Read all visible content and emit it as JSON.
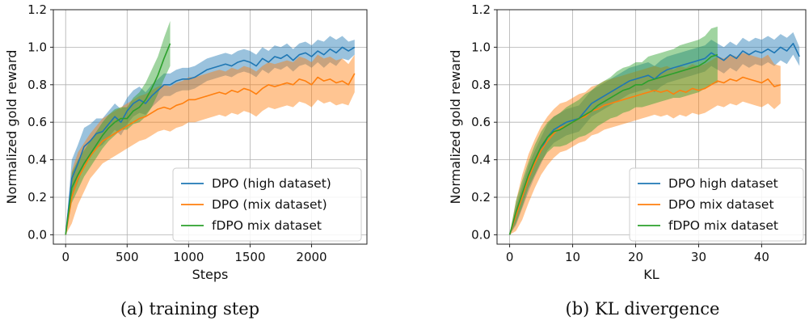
{
  "figure": {
    "captions": [
      "(a) training step",
      "(b) KL divergence"
    ]
  },
  "colors": {
    "blue": "#1f77b4",
    "orange": "#ff7f0e",
    "green": "#2ca02c",
    "grid": "#b0b0b0"
  },
  "chart_data": [
    {
      "type": "line",
      "title": "",
      "xlabel": "Steps",
      "ylabel": "Normalized gold reward",
      "xlim": [
        -100,
        2450
      ],
      "ylim": [
        -0.05,
        1.2
      ],
      "xticks": [
        0,
        500,
        1000,
        1500,
        2000
      ],
      "yticks": [
        0.0,
        0.2,
        0.4,
        0.6,
        0.8,
        1.0,
        1.2
      ],
      "ytick_labels": [
        "0.0",
        "0.2",
        "0.4",
        "0.6",
        "0.8",
        "1.0",
        "1.2"
      ],
      "grid": true,
      "legend_position": "lower-right",
      "series": [
        {
          "name": "DPO (high dataset)",
          "color": "#1f77b4",
          "x": [
            0,
            50,
            100,
            150,
            200,
            250,
            300,
            350,
            400,
            450,
            500,
            550,
            600,
            650,
            700,
            750,
            800,
            850,
            900,
            950,
            1000,
            1050,
            1100,
            1150,
            1200,
            1250,
            1300,
            1350,
            1400,
            1450,
            1500,
            1550,
            1600,
            1650,
            1700,
            1750,
            1800,
            1850,
            1900,
            1950,
            2000,
            2050,
            2100,
            2150,
            2200,
            2250,
            2300,
            2350
          ],
          "y": [
            0.0,
            0.3,
            0.38,
            0.47,
            0.5,
            0.54,
            0.55,
            0.59,
            0.63,
            0.6,
            0.66,
            0.7,
            0.72,
            0.7,
            0.74,
            0.77,
            0.8,
            0.8,
            0.82,
            0.83,
            0.83,
            0.84,
            0.86,
            0.88,
            0.89,
            0.9,
            0.91,
            0.9,
            0.92,
            0.93,
            0.92,
            0.9,
            0.94,
            0.92,
            0.95,
            0.94,
            0.96,
            0.93,
            0.96,
            0.97,
            0.95,
            0.98,
            0.96,
            0.99,
            0.97,
            1.0,
            0.98,
            1.0
          ],
          "band": [
            0.0,
            0.1,
            0.1,
            0.1,
            0.09,
            0.08,
            0.07,
            0.07,
            0.07,
            0.07,
            0.07,
            0.07,
            0.07,
            0.06,
            0.06,
            0.06,
            0.06,
            0.06,
            0.06,
            0.06,
            0.06,
            0.06,
            0.06,
            0.06,
            0.06,
            0.06,
            0.06,
            0.06,
            0.06,
            0.06,
            0.06,
            0.06,
            0.06,
            0.06,
            0.06,
            0.06,
            0.06,
            0.06,
            0.06,
            0.06,
            0.06,
            0.06,
            0.07,
            0.07,
            0.07,
            0.06,
            0.05,
            0.04
          ]
        },
        {
          "name": "DPO (mix dataset)",
          "color": "#ff7f0e",
          "x": [
            0,
            50,
            100,
            150,
            200,
            250,
            300,
            350,
            400,
            450,
            500,
            550,
            600,
            650,
            700,
            750,
            800,
            850,
            900,
            950,
            1000,
            1050,
            1100,
            1150,
            1200,
            1250,
            1300,
            1350,
            1400,
            1450,
            1500,
            1550,
            1600,
            1650,
            1700,
            1750,
            1800,
            1850,
            1900,
            1950,
            2000,
            2050,
            2100,
            2150,
            2200,
            2250,
            2300,
            2350
          ],
          "y": [
            0.0,
            0.2,
            0.3,
            0.36,
            0.42,
            0.46,
            0.5,
            0.52,
            0.54,
            0.56,
            0.58,
            0.6,
            0.62,
            0.63,
            0.65,
            0.67,
            0.68,
            0.67,
            0.69,
            0.7,
            0.72,
            0.72,
            0.73,
            0.74,
            0.75,
            0.76,
            0.75,
            0.77,
            0.76,
            0.78,
            0.77,
            0.75,
            0.78,
            0.8,
            0.79,
            0.8,
            0.81,
            0.8,
            0.83,
            0.82,
            0.8,
            0.84,
            0.82,
            0.83,
            0.81,
            0.82,
            0.8,
            0.86
          ],
          "band": [
            0.0,
            0.14,
            0.14,
            0.13,
            0.12,
            0.12,
            0.12,
            0.12,
            0.12,
            0.12,
            0.12,
            0.12,
            0.12,
            0.12,
            0.12,
            0.12,
            0.12,
            0.12,
            0.12,
            0.12,
            0.12,
            0.12,
            0.12,
            0.12,
            0.12,
            0.12,
            0.12,
            0.12,
            0.12,
            0.12,
            0.12,
            0.12,
            0.12,
            0.12,
            0.12,
            0.12,
            0.12,
            0.12,
            0.12,
            0.12,
            0.12,
            0.12,
            0.12,
            0.12,
            0.12,
            0.12,
            0.11,
            0.1
          ]
        },
        {
          "name": "fDPO mix dataset",
          "color": "#2ca02c",
          "x": [
            0,
            50,
            100,
            150,
            200,
            250,
            300,
            350,
            400,
            450,
            500,
            550,
            600,
            650,
            700,
            750,
            800,
            850
          ],
          "y": [
            0.0,
            0.25,
            0.32,
            0.38,
            0.43,
            0.48,
            0.53,
            0.57,
            0.6,
            0.62,
            0.62,
            0.66,
            0.68,
            0.72,
            0.78,
            0.85,
            0.94,
            1.02
          ],
          "band": [
            0.0,
            0.08,
            0.08,
            0.07,
            0.07,
            0.07,
            0.07,
            0.07,
            0.07,
            0.06,
            0.06,
            0.07,
            0.08,
            0.09,
            0.1,
            0.1,
            0.11,
            0.12
          ]
        }
      ]
    },
    {
      "type": "line",
      "title": "",
      "xlabel": "KL",
      "ylabel": "Normalized gold reward",
      "xlim": [
        -2,
        47
      ],
      "ylim": [
        -0.05,
        1.2
      ],
      "xticks": [
        0,
        10,
        20,
        30,
        40
      ],
      "yticks": [
        0.0,
        0.2,
        0.4,
        0.6,
        0.8,
        1.0,
        1.2
      ],
      "ytick_labels": [
        "0.0",
        "0.2",
        "0.4",
        "0.6",
        "0.8",
        "1.0",
        "1.2"
      ],
      "grid": true,
      "legend_position": "lower-right",
      "series": [
        {
          "name": "DPO high dataset",
          "color": "#1f77b4",
          "x": [
            0,
            1,
            2,
            3,
            4,
            5,
            6,
            7,
            8,
            9,
            10,
            11,
            12,
            13,
            14,
            15,
            16,
            17,
            18,
            19,
            20,
            21,
            22,
            23,
            24,
            25,
            26,
            27,
            28,
            29,
            30,
            31,
            32,
            33,
            34,
            35,
            36,
            37,
            38,
            39,
            40,
            41,
            42,
            43,
            44,
            45,
            46
          ],
          "y": [
            0.0,
            0.1,
            0.2,
            0.3,
            0.38,
            0.45,
            0.52,
            0.56,
            0.58,
            0.6,
            0.61,
            0.62,
            0.66,
            0.7,
            0.72,
            0.74,
            0.76,
            0.78,
            0.8,
            0.82,
            0.83,
            0.84,
            0.85,
            0.83,
            0.86,
            0.88,
            0.89,
            0.9,
            0.91,
            0.92,
            0.93,
            0.94,
            0.97,
            0.95,
            0.93,
            0.96,
            0.94,
            0.98,
            0.96,
            0.98,
            0.97,
            0.99,
            0.97,
            1.0,
            0.98,
            1.02,
            0.95
          ],
          "band": [
            0.0,
            0.05,
            0.06,
            0.07,
            0.07,
            0.07,
            0.07,
            0.07,
            0.07,
            0.07,
            0.07,
            0.07,
            0.07,
            0.07,
            0.07,
            0.07,
            0.07,
            0.07,
            0.07,
            0.07,
            0.07,
            0.07,
            0.07,
            0.07,
            0.07,
            0.07,
            0.07,
            0.07,
            0.07,
            0.07,
            0.07,
            0.07,
            0.07,
            0.07,
            0.07,
            0.07,
            0.07,
            0.07,
            0.07,
            0.07,
            0.07,
            0.07,
            0.07,
            0.07,
            0.07,
            0.06,
            0.05
          ]
        },
        {
          "name": "DPO mix dataset",
          "color": "#ff7f0e",
          "x": [
            0,
            1,
            2,
            3,
            4,
            5,
            6,
            7,
            8,
            9,
            10,
            11,
            12,
            13,
            14,
            15,
            16,
            17,
            18,
            19,
            20,
            21,
            22,
            23,
            24,
            25,
            26,
            27,
            28,
            29,
            30,
            31,
            32,
            33,
            34,
            35,
            36,
            37,
            38,
            39,
            40,
            41,
            42,
            43
          ],
          "y": [
            0.0,
            0.1,
            0.2,
            0.3,
            0.38,
            0.45,
            0.5,
            0.54,
            0.57,
            0.58,
            0.6,
            0.62,
            0.63,
            0.66,
            0.67,
            0.69,
            0.7,
            0.71,
            0.72,
            0.73,
            0.74,
            0.75,
            0.76,
            0.77,
            0.76,
            0.77,
            0.75,
            0.77,
            0.76,
            0.78,
            0.77,
            0.78,
            0.8,
            0.82,
            0.81,
            0.83,
            0.82,
            0.84,
            0.83,
            0.82,
            0.81,
            0.83,
            0.79,
            0.8
          ],
          "band": [
            0.0,
            0.08,
            0.12,
            0.13,
            0.13,
            0.13,
            0.13,
            0.13,
            0.13,
            0.13,
            0.13,
            0.13,
            0.13,
            0.13,
            0.13,
            0.13,
            0.13,
            0.13,
            0.13,
            0.13,
            0.13,
            0.13,
            0.13,
            0.13,
            0.13,
            0.13,
            0.13,
            0.13,
            0.13,
            0.13,
            0.13,
            0.13,
            0.13,
            0.13,
            0.13,
            0.13,
            0.13,
            0.13,
            0.13,
            0.13,
            0.13,
            0.13,
            0.12,
            0.1
          ]
        },
        {
          "name": "fDPO mix dataset",
          "color": "#2ca02c",
          "x": [
            0,
            1,
            2,
            3,
            4,
            5,
            6,
            7,
            8,
            9,
            10,
            11,
            12,
            13,
            14,
            15,
            16,
            17,
            18,
            19,
            20,
            21,
            22,
            23,
            24,
            25,
            26,
            27,
            28,
            29,
            30,
            31,
            32,
            33
          ],
          "y": [
            0.0,
            0.12,
            0.22,
            0.32,
            0.4,
            0.47,
            0.52,
            0.55,
            0.56,
            0.58,
            0.6,
            0.62,
            0.64,
            0.66,
            0.69,
            0.71,
            0.73,
            0.75,
            0.77,
            0.78,
            0.8,
            0.8,
            0.82,
            0.83,
            0.84,
            0.85,
            0.86,
            0.87,
            0.88,
            0.89,
            0.9,
            0.92,
            0.95,
            0.96
          ],
          "band": [
            0.0,
            0.06,
            0.07,
            0.07,
            0.08,
            0.08,
            0.08,
            0.08,
            0.09,
            0.1,
            0.1,
            0.1,
            0.11,
            0.11,
            0.11,
            0.11,
            0.11,
            0.12,
            0.12,
            0.12,
            0.12,
            0.12,
            0.13,
            0.13,
            0.13,
            0.13,
            0.13,
            0.14,
            0.14,
            0.14,
            0.14,
            0.14,
            0.15,
            0.15
          ]
        }
      ]
    }
  ]
}
